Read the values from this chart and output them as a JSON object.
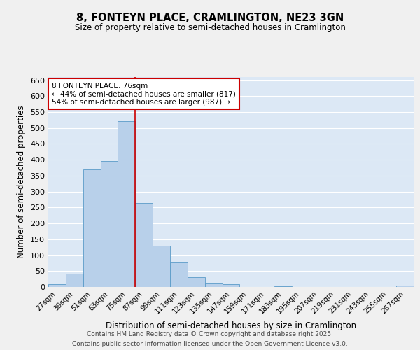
{
  "title": "8, FONTEYN PLACE, CRAMLINGTON, NE23 3GN",
  "subtitle": "Size of property relative to semi-detached houses in Cramlington",
  "xlabel": "Distribution of semi-detached houses by size in Cramlington",
  "ylabel": "Number of semi-detached properties",
  "categories": [
    "27sqm",
    "39sqm",
    "51sqm",
    "63sqm",
    "75sqm",
    "87sqm",
    "99sqm",
    "111sqm",
    "123sqm",
    "135sqm",
    "147sqm",
    "159sqm",
    "171sqm",
    "183sqm",
    "195sqm",
    "207sqm",
    "219sqm",
    "231sqm",
    "243sqm",
    "255sqm",
    "267sqm"
  ],
  "values": [
    8,
    41,
    369,
    396,
    521,
    263,
    130,
    76,
    30,
    12,
    9,
    1,
    0,
    3,
    0,
    0,
    0,
    0,
    0,
    0,
    5
  ],
  "bar_color": "#b8d0ea",
  "bar_edgecolor": "#5a9bc8",
  "bg_color": "#dce8f5",
  "grid_color": "#ffffff",
  "vline_x": 4.5,
  "vline_color": "#cc0000",
  "annotation_text": "8 FONTEYN PLACE: 76sqm\n← 44% of semi-detached houses are smaller (817)\n54% of semi-detached houses are larger (987) →",
  "annotation_box_color": "#ffffff",
  "annotation_box_edgecolor": "#cc0000",
  "ylim": [
    0,
    660
  ],
  "yticks": [
    0,
    50,
    100,
    150,
    200,
    250,
    300,
    350,
    400,
    450,
    500,
    550,
    600,
    650
  ],
  "footnote1": "Contains HM Land Registry data © Crown copyright and database right 2025.",
  "footnote2": "Contains public sector information licensed under the Open Government Licence v3.0."
}
